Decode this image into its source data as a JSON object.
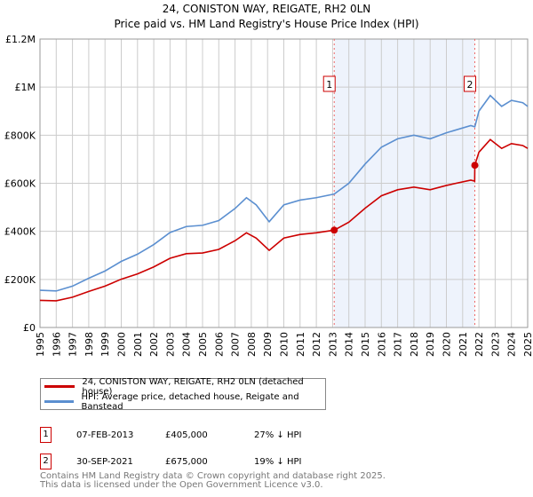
{
  "chart_data": {
    "type": "line",
    "title": "24, CONISTON WAY, REIGATE, RH2 0LN",
    "subtitle": "Price paid vs. HM Land Registry's House Price Index (HPI)",
    "xlim": [
      1995,
      2025
    ],
    "ylim": [
      0,
      1200000
    ],
    "x_ticks": [
      "1995",
      "1996",
      "1997",
      "1998",
      "1999",
      "2000",
      "2001",
      "2002",
      "2003",
      "2004",
      "2005",
      "2006",
      "2007",
      "2008",
      "2009",
      "2010",
      "2011",
      "2012",
      "2013",
      "2014",
      "2015",
      "2016",
      "2017",
      "2018",
      "2019",
      "2020",
      "2021",
      "2022",
      "2023",
      "2024",
      "2025"
    ],
    "y_ticks": [
      {
        "v": 0,
        "label": "£0"
      },
      {
        "v": 200000,
        "label": "£200K"
      },
      {
        "v": 400000,
        "label": "£400K"
      },
      {
        "v": 600000,
        "label": "£600K"
      },
      {
        "v": 800000,
        "label": "£800K"
      },
      {
        "v": 1000000,
        "label": "£1M"
      },
      {
        "v": 1200000,
        "label": "£1.2M"
      }
    ],
    "grid": true,
    "series": [
      {
        "name": "24, CONISTON WAY, REIGATE, RH2 0LN (detached house)",
        "color": "#cc0000",
        "points": [
          [
            1995,
            113000
          ],
          [
            1996,
            111000
          ],
          [
            1997,
            126000
          ],
          [
            1998,
            150000
          ],
          [
            1999,
            172000
          ],
          [
            2000,
            201000
          ],
          [
            2001,
            223000
          ],
          [
            2002,
            252000
          ],
          [
            2003,
            288000
          ],
          [
            2004,
            307000
          ],
          [
            2005,
            310000
          ],
          [
            2006,
            325000
          ],
          [
            2007,
            361000
          ],
          [
            2007.7,
            394000
          ],
          [
            2008.3,
            372000
          ],
          [
            2009.1,
            321000
          ],
          [
            2010,
            372000
          ],
          [
            2011,
            387000
          ],
          [
            2012,
            394000
          ],
          [
            2013.1,
            405000
          ],
          [
            2014,
            438000
          ],
          [
            2015,
            496000
          ],
          [
            2016,
            548000
          ],
          [
            2017,
            573000
          ],
          [
            2018,
            584000
          ],
          [
            2019,
            573000
          ],
          [
            2020,
            591000
          ],
          [
            2021.5,
            613000
          ],
          [
            2021.74,
            609000
          ],
          [
            2021.75,
            675000
          ],
          [
            2022,
            729000
          ],
          [
            2022.7,
            782000
          ],
          [
            2023.4,
            745000
          ],
          [
            2024,
            765000
          ],
          [
            2024.7,
            757000
          ],
          [
            2025,
            745000
          ]
        ]
      },
      {
        "name": "HPI: Average price, detached house, Reigate and Banstead",
        "color": "#5b8fd0",
        "points": [
          [
            1995,
            155000
          ],
          [
            1996,
            152000
          ],
          [
            1997,
            172000
          ],
          [
            1998,
            205000
          ],
          [
            1999,
            235000
          ],
          [
            2000,
            275000
          ],
          [
            2001,
            305000
          ],
          [
            2002,
            345000
          ],
          [
            2003,
            395000
          ],
          [
            2004,
            420000
          ],
          [
            2005,
            425000
          ],
          [
            2006,
            445000
          ],
          [
            2007,
            495000
          ],
          [
            2007.7,
            540000
          ],
          [
            2008.3,
            510000
          ],
          [
            2009.1,
            440000
          ],
          [
            2010,
            510000
          ],
          [
            2011,
            530000
          ],
          [
            2012,
            540000
          ],
          [
            2013.1,
            555000
          ],
          [
            2014,
            600000
          ],
          [
            2015,
            680000
          ],
          [
            2016,
            750000
          ],
          [
            2017,
            785000
          ],
          [
            2018,
            800000
          ],
          [
            2019,
            785000
          ],
          [
            2020,
            810000
          ],
          [
            2021.5,
            840000
          ],
          [
            2021.75,
            835000
          ],
          [
            2022,
            900000
          ],
          [
            2022.7,
            965000
          ],
          [
            2023.4,
            920000
          ],
          [
            2024,
            945000
          ],
          [
            2024.7,
            935000
          ],
          [
            2025,
            920000
          ]
        ]
      }
    ],
    "annotations": [
      {
        "label": "1",
        "x": 2013.1,
        "y": 405000
      },
      {
        "label": "2",
        "x": 2021.75,
        "y": 675000
      }
    ],
    "legend_placement": "below"
  },
  "legend": {
    "red": "24, CONISTON WAY, REIGATE, RH2 0LN (detached house)",
    "blue": "HPI: Average price, detached house, Reigate and Banstead"
  },
  "sales": [
    {
      "num": "1",
      "date": "07-FEB-2013",
      "price": "£405,000",
      "hpi": "27% ↓ HPI"
    },
    {
      "num": "2",
      "date": "30-SEP-2021",
      "price": "£675,000",
      "hpi": "19% ↓ HPI"
    }
  ],
  "footer": [
    "Contains HM Land Registry data © Crown copyright and database right 2025.",
    "This data is licensed under the Open Government Licence v3.0."
  ]
}
